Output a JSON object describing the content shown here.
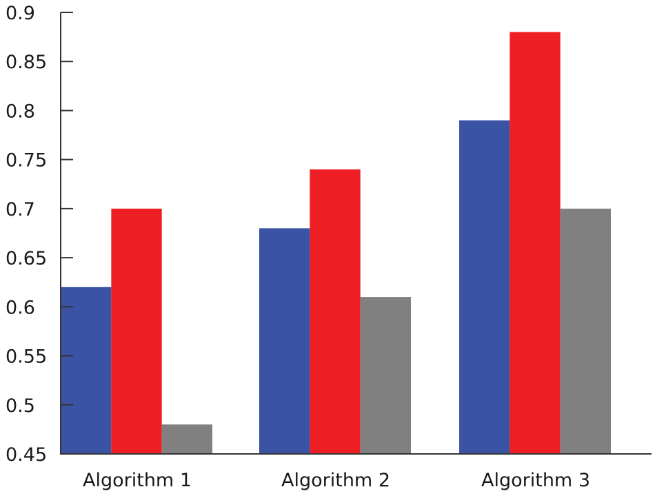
{
  "chart_data": {
    "type": "bar",
    "categories": [
      "Algorithm 1",
      "Algorithm 2",
      "Algorithm 3"
    ],
    "series": [
      {
        "values": [
          0.62,
          0.68,
          0.79
        ],
        "color": "#3a53a4"
      },
      {
        "values": [
          0.7,
          0.74,
          0.88
        ],
        "color": "#ed1f24"
      },
      {
        "values": [
          0.48,
          0.61,
          0.7
        ],
        "color": "#808080"
      }
    ],
    "ylim": [
      0.45,
      0.9
    ],
    "yticks": [
      "0.45",
      "0.5",
      "0.55",
      "0.6",
      "0.65",
      "0.7",
      "0.75",
      "0.8",
      "0.85",
      "0.9"
    ],
    "grid": false,
    "legend": "none",
    "title": "",
    "xlabel": "",
    "ylabel": ""
  }
}
